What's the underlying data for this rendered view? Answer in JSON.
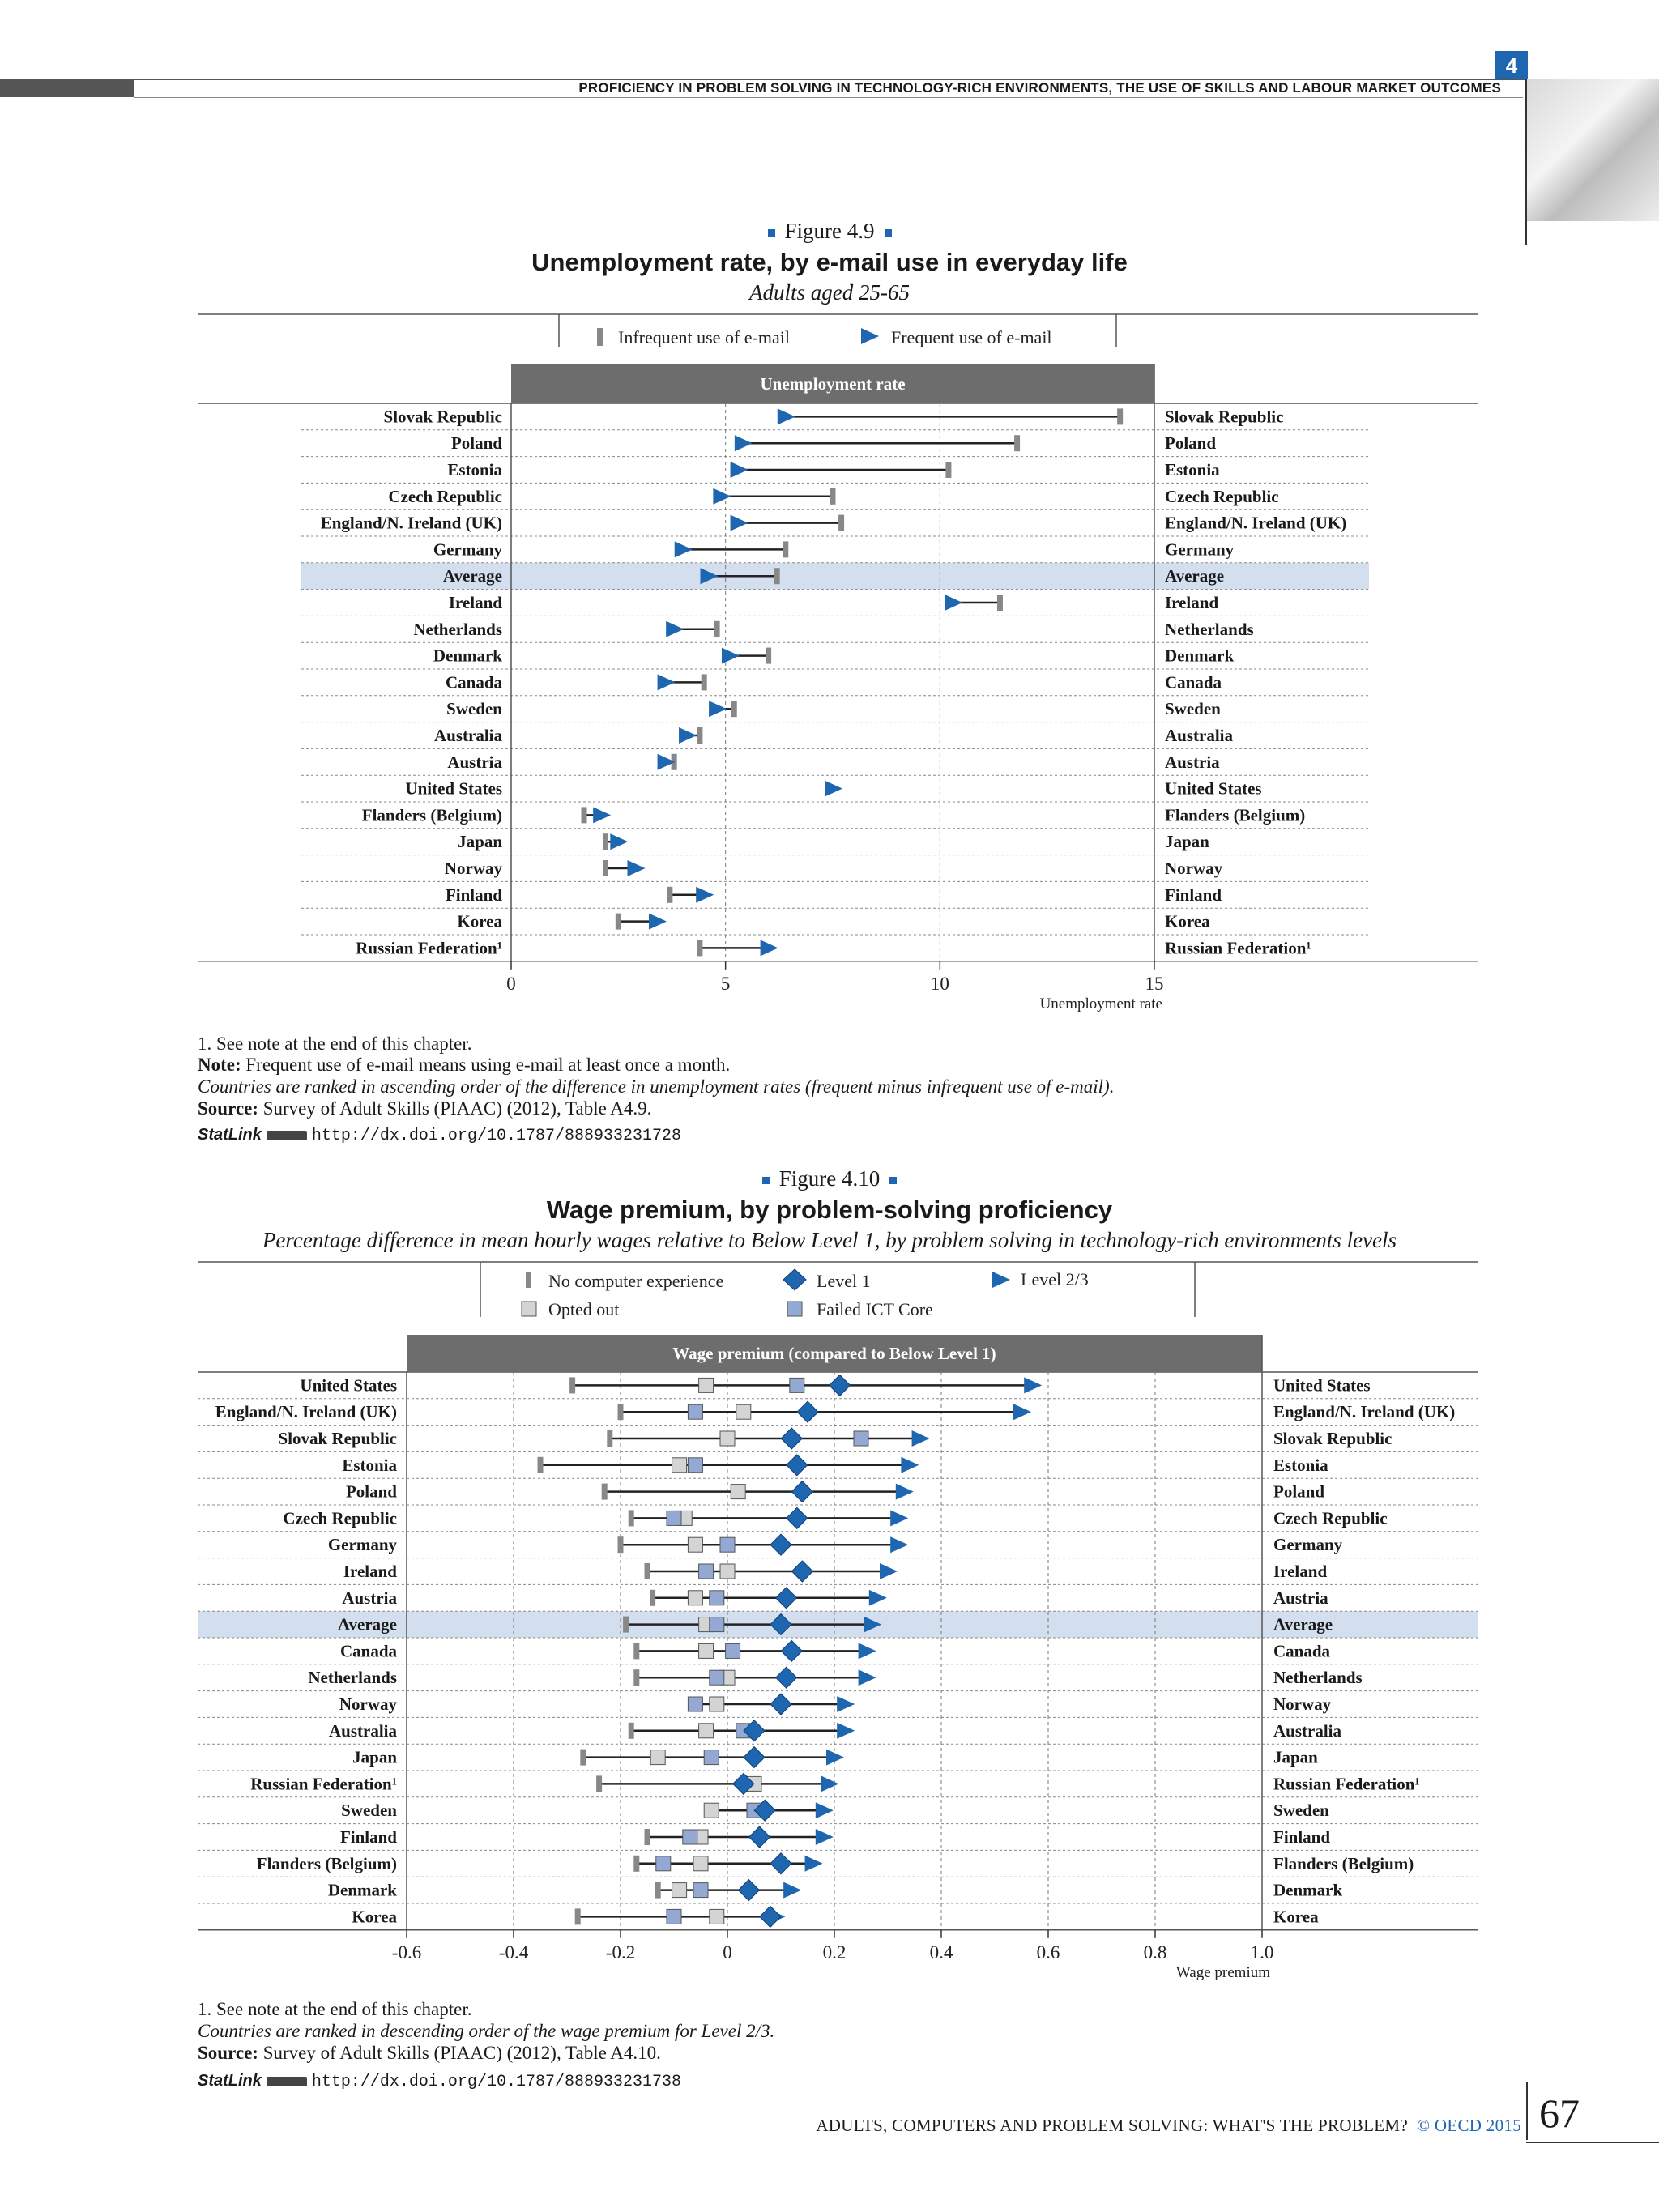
{
  "header": {
    "chapter": "4",
    "running_title": "PROFICIENCY IN PROBLEM SOLVING IN TECHNOLOGY-RICH ENVIRONMENTS, THE USE OF SKILLS AND LABOUR MARKET OUTCOMES"
  },
  "figure1": {
    "label": "Figure 4.9",
    "title": "Unemployment rate, by e-mail use in everyday life",
    "subtitle": "Adults aged 25-65",
    "notes": {
      "note1": "1. See note at the end of this chapter.",
      "note_label": "Note:",
      "note_text": " Frequent use of e-mail means using e-mail at least once a month.",
      "ranking": "Countries are ranked in ascending order of the difference in unemployment rates (frequent minus infrequent use of e-mail).",
      "source_label": "Source:",
      "source_text": " Survey of Adult Skills (PIAAC) (2012), Table A4.9.",
      "statlink_label": "StatLink",
      "statlink_url": "http://dx.doi.org/10.1787/888933231728"
    }
  },
  "figure2": {
    "label": "Figure 4.10",
    "title": "Wage premium, by problem-solving proficiency",
    "subtitle": "Percentage difference in mean hourly wages relative to Below Level 1, by problem solving in technology-rich environments levels",
    "notes": {
      "note1": "1. See note at the end of this chapter.",
      "ranking": "Countries are ranked in descending order of the wage premium for Level 2/3.",
      "source_label": "Source:",
      "source_text": " Survey of Adult Skills (PIAAC) (2012), Table A4.10.",
      "statlink_label": "StatLink",
      "statlink_url": "http://dx.doi.org/10.1787/888933231738"
    }
  },
  "footer": {
    "title": "ADULTS, COMPUTERS AND PROBLEM SOLVING: WHAT'S THE PROBLEM?",
    "copyright": "© OECD 2015",
    "page": "67"
  },
  "chart_data": [
    {
      "type": "dot",
      "header": "Unemployment rate",
      "xlabel": "Unemployment rate",
      "xlim": [
        0,
        15
      ],
      "xticks": [
        0,
        5,
        10,
        15
      ],
      "grid": true,
      "legend_position": "top",
      "highlight": "Average",
      "colors": {
        "infrequent": "#888888",
        "frequent": "#1f66b1",
        "highlight_row": "#d3deef",
        "header": "#6d6d6d"
      },
      "series": [
        {
          "name": "Infrequent use of e-mail",
          "marker": "bar"
        },
        {
          "name": "Frequent use of e-mail",
          "marker": "triangle"
        }
      ],
      "categories": [
        "Slovak Republic",
        "Poland",
        "Estonia",
        "Czech Republic",
        "England/N. Ireland (UK)",
        "Germany",
        "Average",
        "Ireland",
        "Netherlands",
        "Denmark",
        "Canada",
        "Sweden",
        "Australia",
        "Austria",
        "United States",
        "Flanders (Belgium)",
        "Japan",
        "Norway",
        "Finland",
        "Korea",
        "Russian Federation¹"
      ],
      "infrequent": [
        14.2,
        11.8,
        10.2,
        7.5,
        7.7,
        6.4,
        6.2,
        11.4,
        4.8,
        6.0,
        4.5,
        5.2,
        4.4,
        3.8,
        null,
        1.7,
        2.2,
        2.2,
        3.7,
        2.5,
        4.4
      ],
      "frequent": [
        6.4,
        5.4,
        5.3,
        4.9,
        5.3,
        4.0,
        4.6,
        10.3,
        3.8,
        5.1,
        3.6,
        4.8,
        4.1,
        3.6,
        7.5,
        2.1,
        2.5,
        2.9,
        4.5,
        3.4,
        6.0
      ]
    },
    {
      "type": "dot",
      "header": "Wage premium (compared to Below Level 1)",
      "xlabel": "Wage premium",
      "xlim": [
        -0.6,
        1.0
      ],
      "xticks": [
        -0.6,
        -0.4,
        -0.2,
        0,
        0.2,
        0.4,
        0.6,
        0.8,
        1.0
      ],
      "xtick_labels": [
        "-0.6",
        "-0.4",
        "-0.2",
        "0",
        "0.2",
        "0.4",
        "0.6",
        "0.8",
        "1.0"
      ],
      "grid": true,
      "legend_position": "top",
      "highlight": "Average",
      "colors": {
        "no_computer": "#888888",
        "opted_out": "#d4d4d4",
        "failed_ict": "#93a9d4",
        "level1": "#1f66b1",
        "level23": "#1f66b1",
        "highlight_row": "#d3deef",
        "header": "#6d6d6d"
      },
      "series": [
        {
          "name": "No computer experience",
          "marker": "bar"
        },
        {
          "name": "Opted out",
          "marker": "square"
        },
        {
          "name": "Failed ICT Core",
          "marker": "square"
        },
        {
          "name": "Level 1",
          "marker": "diamond"
        },
        {
          "name": "Level 2/3",
          "marker": "triangle"
        }
      ],
      "categories": [
        "United States",
        "England/N. Ireland (UK)",
        "Slovak Republic",
        "Estonia",
        "Poland",
        "Czech Republic",
        "Germany",
        "Ireland",
        "Austria",
        "Average",
        "Canada",
        "Netherlands",
        "Norway",
        "Australia",
        "Japan",
        "Russian Federation¹",
        "Sweden",
        "Finland",
        "Flanders (Belgium)",
        "Denmark",
        "Korea"
      ],
      "no_computer": [
        -0.29,
        -0.2,
        -0.22,
        -0.35,
        -0.23,
        -0.18,
        -0.2,
        -0.15,
        -0.14,
        -0.19,
        -0.17,
        -0.17,
        null,
        -0.18,
        -0.27,
        -0.24,
        null,
        -0.15,
        -0.17,
        -0.13,
        -0.28
      ],
      "opted_out": [
        -0.04,
        0.03,
        0.0,
        -0.09,
        0.02,
        -0.08,
        -0.06,
        0.0,
        -0.06,
        -0.04,
        -0.04,
        0.0,
        -0.02,
        -0.04,
        -0.13,
        0.05,
        -0.03,
        -0.05,
        -0.05,
        -0.09,
        -0.02
      ],
      "failed_ict": [
        0.13,
        -0.06,
        0.25,
        -0.06,
        null,
        -0.1,
        0.0,
        -0.04,
        -0.02,
        -0.02,
        0.01,
        -0.02,
        -0.06,
        0.03,
        -0.03,
        null,
        0.05,
        -0.07,
        -0.12,
        -0.05,
        -0.1
      ],
      "level1": [
        0.21,
        0.15,
        0.12,
        0.13,
        0.14,
        0.13,
        0.1,
        0.14,
        0.11,
        0.1,
        0.12,
        0.11,
        0.1,
        0.05,
        0.05,
        0.03,
        0.07,
        0.06,
        0.1,
        0.04,
        0.08
      ],
      "level23": [
        0.57,
        0.55,
        0.36,
        0.34,
        0.33,
        0.32,
        0.32,
        0.3,
        0.28,
        0.27,
        0.26,
        0.26,
        0.22,
        0.22,
        0.2,
        0.19,
        0.18,
        0.18,
        0.16,
        0.12,
        0.09
      ]
    }
  ]
}
